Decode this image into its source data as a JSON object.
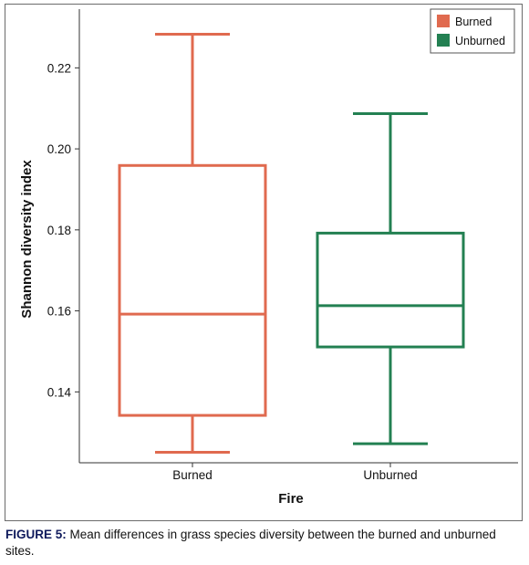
{
  "chart_data": {
    "type": "box",
    "xlabel": "Fire",
    "ylabel": "Shannon diversity index",
    "ylim": [
      0.1225,
      0.2345
    ],
    "yticks": [
      "0.14",
      "0.16",
      "0.18",
      "0.20",
      "0.22"
    ],
    "legend_position": "top-right",
    "categories": [
      "Burned",
      "Unburned"
    ],
    "series": [
      {
        "name": "Burned",
        "color": "#e06a4f",
        "min": 0.1251,
        "q1": 0.1342,
        "median": 0.1592,
        "q3": 0.1959,
        "max": 0.2283
      },
      {
        "name": "Unburned",
        "color": "#238052",
        "min": 0.1272,
        "q1": 0.1511,
        "median": 0.1613,
        "q3": 0.1792,
        "max": 0.2087
      }
    ]
  },
  "caption": {
    "label": "FIGURE 5:",
    "text": " Mean differences in grass species diversity between the burned and unburned sites."
  }
}
